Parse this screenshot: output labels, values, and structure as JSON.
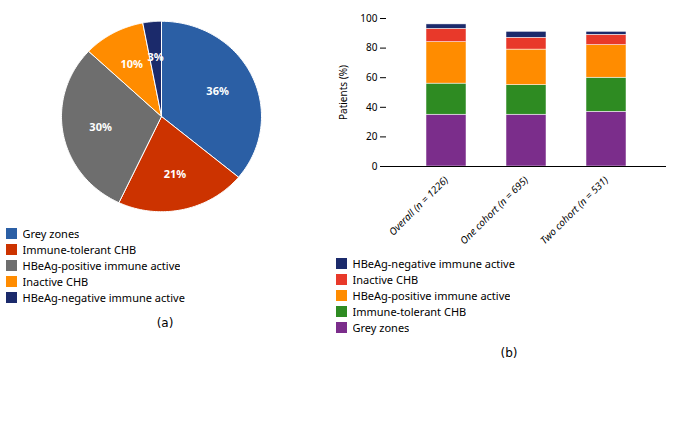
{
  "chart_data": [
    {
      "type": "pie",
      "categories": [
        "Grey zones",
        "Immune-tolerant CHB",
        "HBeAg-positive immune active",
        "Inactive CHB",
        "HBeAg-negative immune active"
      ],
      "values": [
        36,
        21,
        30,
        10,
        3
      ],
      "value_labels": [
        "36%",
        "21%",
        "30%",
        "10%",
        "3%"
      ],
      "colors": [
        "#2B5FA5",
        "#CC3300",
        "#6E6E6E",
        "#FF8C00",
        "#1B2A6B"
      ],
      "data_labels": true,
      "legend": "lower left",
      "annotations": [
        "(a)"
      ]
    },
    {
      "type": "bar",
      "stacked": true,
      "categories": [
        "Overall (n = 1226)",
        "One cohort (n = 695)",
        "Two cohort (n = 531)"
      ],
      "series": [
        {
          "name": "Grey zones",
          "color": "#7B2D8B",
          "values": [
            35,
            35,
            37
          ]
        },
        {
          "name": "Immune-tolerant CHB",
          "color": "#2E8B22",
          "values": [
            21,
            20,
            23
          ]
        },
        {
          "name": "HBeAg-positive immune active",
          "color": "#FF8C00",
          "values": [
            28,
            24,
            22
          ]
        },
        {
          "name": "Inactive CHB",
          "color": "#E8392A",
          "values": [
            9,
            8,
            7
          ]
        },
        {
          "name": "HBeAg-negative immune active",
          "color": "#1B2A6B",
          "values": [
            3,
            4,
            2
          ]
        }
      ],
      "y_label": "Patients (%)",
      "ylim": [
        0,
        100
      ],
      "yticks": [
        0,
        20,
        40,
        60,
        80,
        100
      ],
      "grid": false,
      "legend": "bottom",
      "annotations": [
        "(b)"
      ]
    }
  ]
}
